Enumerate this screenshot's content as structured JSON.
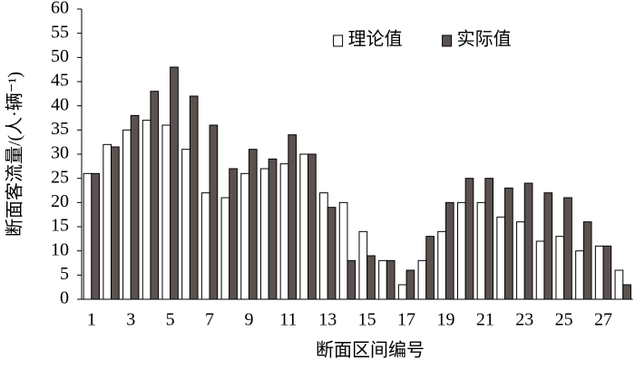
{
  "chart_data": {
    "type": "bar",
    "x_label": "断面区间编号",
    "y_label": "断面客流量/(人·辆⁻¹)",
    "categories": [
      "1",
      null,
      "3",
      null,
      "5",
      null,
      "7",
      null,
      "9",
      null,
      "11",
      null,
      "13",
      null,
      "15",
      null,
      "17",
      null,
      "19",
      null,
      "21",
      null,
      "23",
      null,
      "25",
      null,
      "27",
      null
    ],
    "series": [
      {
        "name": "理论值",
        "color": "#ffffff",
        "values": [
          26,
          32,
          35,
          37,
          36,
          31,
          22,
          21,
          26,
          27,
          28,
          30,
          22,
          20,
          14,
          8,
          3,
          8,
          14,
          20,
          20,
          17,
          16,
          12,
          13,
          10,
          11,
          6
        ]
      },
      {
        "name": "实际值",
        "color": "#5b5250",
        "values": [
          26,
          31.5,
          38,
          43,
          48,
          42,
          36,
          27,
          31,
          29,
          34,
          30,
          19,
          8,
          9,
          8,
          6,
          13,
          20,
          25,
          25,
          23,
          24,
          22,
          21,
          16,
          11,
          3
        ]
      }
    ],
    "ylim": [
      0,
      60
    ],
    "yticks": [
      0,
      5,
      10,
      15,
      20,
      25,
      30,
      35,
      40,
      45,
      50,
      55,
      60
    ],
    "grid": false,
    "legend": "top-right"
  }
}
